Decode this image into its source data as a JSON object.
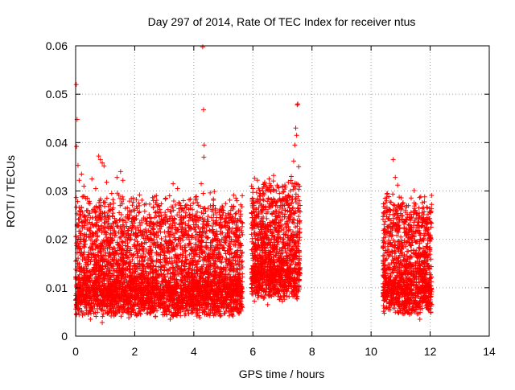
{
  "chart_data": {
    "type": "scatter",
    "title": "Day 297 of 2014, Rate Of TEC Index for receiver ntus",
    "xlabel": "GPS time / hours",
    "ylabel": "ROTI / TECUs",
    "xlim": [
      0,
      14
    ],
    "ylim": [
      0,
      0.06
    ],
    "x_ticks": [
      0,
      2,
      4,
      6,
      8,
      10,
      12,
      14
    ],
    "x_tick_labels": [
      "0",
      "2",
      "4",
      "6",
      "8",
      "10",
      "12",
      "14"
    ],
    "y_ticks": [
      0,
      0.01,
      0.02,
      0.03,
      0.04,
      0.05,
      0.06
    ],
    "y_tick_labels": [
      "0",
      "0.01",
      "0.02",
      "0.03",
      "0.04",
      "0.05",
      "0.06"
    ],
    "grid": true,
    "marker": "+",
    "color": "#ff0000",
    "series": [
      {
        "name": "ROTI",
        "points": [
          [
            0.02,
            0.052
          ],
          [
            0.05,
            0.0448
          ],
          [
            0.03,
            0.0392
          ],
          [
            0.08,
            0.0353
          ],
          [
            0.12,
            0.0322
          ],
          [
            0.2,
            0.0335
          ],
          [
            0.28,
            0.031
          ],
          [
            0.4,
            0.0285
          ],
          [
            0.55,
            0.0325
          ],
          [
            0.68,
            0.0305
          ],
          [
            0.78,
            0.0372
          ],
          [
            0.84,
            0.0365
          ],
          [
            0.9,
            0.0358
          ],
          [
            0.96,
            0.0352
          ],
          [
            1.05,
            0.0318
          ],
          [
            1.22,
            0.0295
          ],
          [
            1.4,
            0.0328
          ],
          [
            1.52,
            0.034
          ],
          [
            1.6,
            0.0322
          ],
          [
            1.75,
            0.0265
          ],
          [
            1.95,
            0.0242
          ],
          [
            2.1,
            0.0225
          ],
          [
            2.35,
            0.0242
          ],
          [
            2.55,
            0.0235
          ],
          [
            2.85,
            0.0262
          ],
          [
            3.05,
            0.0285
          ],
          [
            3.18,
            0.029
          ],
          [
            3.3,
            0.0315
          ],
          [
            3.45,
            0.0305
          ],
          [
            3.55,
            0.027
          ],
          [
            3.75,
            0.0265
          ],
          [
            3.98,
            0.0275
          ],
          [
            4.12,
            0.0245
          ],
          [
            4.25,
            0.0315
          ],
          [
            4.32,
            0.0295
          ],
          [
            4.4,
            0.0258
          ],
          [
            4.6,
            0.0245
          ],
          [
            4.78,
            0.0232
          ],
          [
            5.0,
            0.0255
          ],
          [
            5.15,
            0.0245
          ],
          [
            5.3,
            0.0235
          ],
          [
            5.42,
            0.0222
          ],
          [
            5.58,
            0.0192
          ],
          [
            4.3,
            0.0598
          ],
          [
            4.33,
            0.0468
          ],
          [
            4.35,
            0.0395
          ],
          [
            4.34,
            0.037
          ],
          [
            6.0,
            0.0305
          ],
          [
            6.1,
            0.0262
          ],
          [
            6.25,
            0.0295
          ],
          [
            6.4,
            0.0318
          ],
          [
            6.55,
            0.0325
          ],
          [
            6.62,
            0.0308
          ],
          [
            6.7,
            0.0332
          ],
          [
            6.82,
            0.0312
          ],
          [
            6.9,
            0.0295
          ],
          [
            7.0,
            0.031
          ],
          [
            7.1,
            0.0288
          ],
          [
            7.2,
            0.0318
          ],
          [
            7.3,
            0.033
          ],
          [
            7.38,
            0.0362
          ],
          [
            7.42,
            0.0395
          ],
          [
            7.45,
            0.043
          ],
          [
            7.48,
            0.0415
          ],
          [
            7.5,
            0.0478
          ],
          [
            7.52,
            0.048
          ],
          [
            7.55,
            0.035
          ],
          [
            7.58,
            0.031
          ],
          [
            10.42,
            0.0255
          ],
          [
            10.48,
            0.0285
          ],
          [
            10.55,
            0.0295
          ],
          [
            10.62,
            0.026
          ],
          [
            10.75,
            0.0365
          ],
          [
            10.82,
            0.0328
          ],
          [
            10.9,
            0.0312
          ],
          [
            11.05,
            0.0242
          ],
          [
            11.2,
            0.0222
          ],
          [
            11.35,
            0.0245
          ],
          [
            11.5,
            0.026
          ],
          [
            11.62,
            0.0265
          ],
          [
            11.68,
            0.0288
          ],
          [
            11.8,
            0.0238
          ],
          [
            11.92,
            0.0215
          ],
          [
            12.02,
            0.0255
          ],
          [
            0.1,
            0.0048
          ],
          [
            0.5,
            0.0035
          ],
          [
            0.9,
            0.0028
          ],
          [
            1.3,
            0.0042
          ],
          [
            1.8,
            0.0038
          ],
          [
            2.2,
            0.0045
          ],
          [
            2.7,
            0.004
          ],
          [
            3.2,
            0.0035
          ],
          [
            3.7,
            0.0043
          ],
          [
            4.2,
            0.0038
          ],
          [
            4.7,
            0.0048
          ],
          [
            5.2,
            0.0042
          ],
          [
            5.6,
            0.0052
          ],
          [
            6.05,
            0.0072
          ],
          [
            6.5,
            0.0065
          ],
          [
            7.0,
            0.0072
          ],
          [
            7.5,
            0.0082
          ],
          [
            10.45,
            0.0058
          ],
          [
            10.9,
            0.0052
          ],
          [
            11.3,
            0.0045
          ],
          [
            11.65,
            0.0035
          ],
          [
            12.0,
            0.0075
          ]
        ],
        "clusters": [
          {
            "x_start": 0.0,
            "x_end": 5.65,
            "count": 4200,
            "base": 0.004
          },
          {
            "x_start": 5.95,
            "x_end": 7.6,
            "count": 1300,
            "base": 0.0075
          },
          {
            "x_start": 10.4,
            "x_end": 12.05,
            "count": 1300,
            "base": 0.0045
          }
        ]
      }
    ]
  }
}
